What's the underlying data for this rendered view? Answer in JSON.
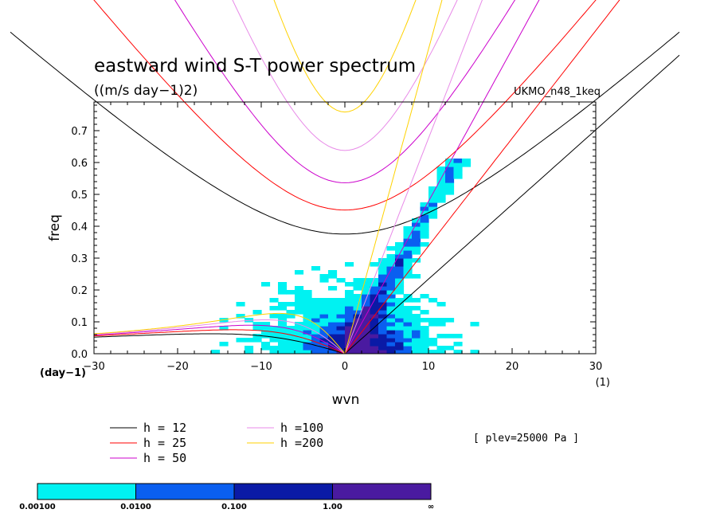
{
  "chart_data": {
    "type": "heatmap",
    "title": "eastward wind S-T power spectrum",
    "subtitle": "((m/s day−1)2)",
    "source_label": "UKMO_n48_1keq",
    "xlabel": "wvn",
    "ylabel": "freq",
    "x_unit": "(1)",
    "y_unit": "(day−1)",
    "xlim": [
      -30,
      30
    ],
    "ylim": [
      0,
      0.79
    ],
    "x_ticks": [
      "−30",
      "−20",
      "−10",
      "0",
      "10",
      "20",
      "30"
    ],
    "y_ticks": [
      "0.0",
      "0.1",
      "0.2",
      "0.3",
      "0.4",
      "0.5",
      "0.6",
      "0.7"
    ],
    "level_annotation": "[ plev=25000 Pa ]",
    "colorbar": {
      "bounds": [
        "0.00100",
        "0.0100",
        "0.100",
        "1.00",
        "∞"
      ],
      "colors": [
        "#00f2f2",
        "#0a5ff0",
        "#0a1aa6",
        "#4a1aa0"
      ]
    },
    "dispersion_curves": [
      {
        "label": "h = 12",
        "color": "#000000",
        "h": 12
      },
      {
        "label": "h = 25",
        "color": "#ff0000",
        "h": 25
      },
      {
        "label": "h = 50",
        "color": "#cc00cc",
        "h": 50
      },
      {
        "label": "h =100",
        "color": "#e88ae8",
        "h": 100
      },
      {
        "label": "h =200",
        "color": "#ffd200",
        "h": 200
      }
    ]
  }
}
